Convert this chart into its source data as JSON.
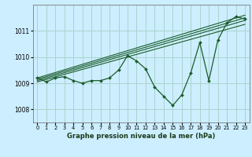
{
  "xlabel": "Graphe pression niveau de la mer (hPa)",
  "bg_color": "#cceeff",
  "grid_color": "#aad4cc",
  "line_color": "#1a5c2a",
  "xlim": [
    -0.5,
    23.5
  ],
  "ylim": [
    1007.5,
    1012.0
  ],
  "yticks": [
    1008,
    1009,
    1010,
    1011
  ],
  "xticks": [
    0,
    1,
    2,
    3,
    4,
    5,
    6,
    7,
    8,
    9,
    10,
    11,
    12,
    13,
    14,
    15,
    16,
    17,
    18,
    19,
    20,
    21,
    22,
    23
  ],
  "series": {
    "main": {
      "x": [
        0,
        1,
        2,
        3,
        4,
        5,
        6,
        7,
        8,
        9,
        10,
        11,
        12,
        13,
        14,
        15,
        16,
        17,
        18,
        19,
        20,
        21,
        22,
        23
      ],
      "y": [
        1009.2,
        1009.05,
        1009.2,
        1009.25,
        1009.1,
        1009.0,
        1009.1,
        1009.1,
        1009.2,
        1009.5,
        1010.05,
        1009.85,
        1009.55,
        1008.85,
        1008.5,
        1008.15,
        1008.55,
        1009.4,
        1010.55,
        1009.1,
        1010.65,
        1011.3,
        1011.55,
        1011.45
      ]
    },
    "line1": {
      "x": [
        0,
        23
      ],
      "y": [
        1009.2,
        1011.6
      ]
    },
    "line2": {
      "x": [
        0,
        23
      ],
      "y": [
        1009.15,
        1011.5
      ]
    },
    "line3": {
      "x": [
        0,
        23
      ],
      "y": [
        1009.1,
        1011.4
      ]
    },
    "line4": {
      "x": [
        0,
        23
      ],
      "y": [
        1009.05,
        1011.25
      ]
    }
  }
}
